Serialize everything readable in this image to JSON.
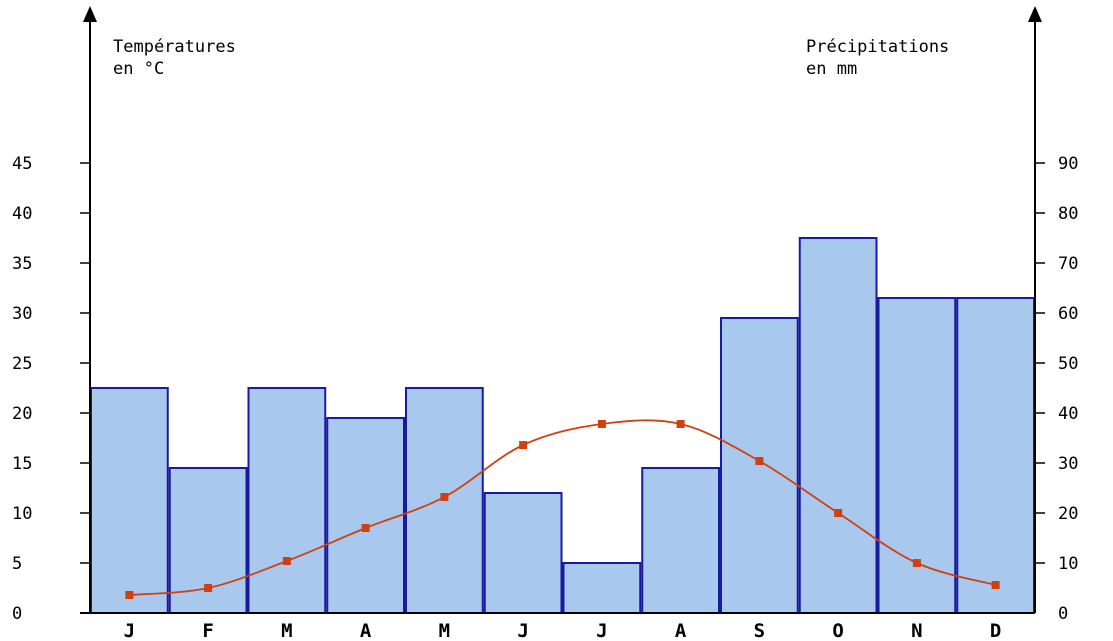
{
  "chart_data": {
    "type": "bar",
    "categories": [
      "J",
      "F",
      "M",
      "A",
      "M",
      "J",
      "J",
      "A",
      "S",
      "O",
      "N",
      "D"
    ],
    "series": [
      {
        "type": "bar",
        "axis": "right",
        "values": [
          45,
          29,
          45,
          39,
          45,
          24,
          10,
          29,
          59,
          75,
          63,
          63
        ],
        "color": "#a8c8ee",
        "stroke": "#1a1aa0"
      },
      {
        "type": "line",
        "axis": "left",
        "values": [
          1.8,
          2.5,
          5.2,
          8.5,
          11.6,
          16.8,
          18.9,
          18.9,
          15.2,
          10.0,
          5.0,
          2.8
        ],
        "color": "#d04010"
      }
    ],
    "left_axis": {
      "title_line1": "Températures",
      "title_line2": "en °C",
      "ylim": [
        0,
        45
      ],
      "ticks": [
        "0",
        "5",
        "10",
        "15",
        "20",
        "25",
        "30",
        "35",
        "40",
        "45"
      ],
      "tick_values": [
        0,
        5,
        10,
        15,
        20,
        25,
        30,
        35,
        40,
        45
      ]
    },
    "right_axis": {
      "title_line1": "Précipitations",
      "title_line2": "en mm",
      "ylim": [
        0,
        90
      ],
      "ticks": [
        "0",
        "10",
        "20",
        "30",
        "40",
        "50",
        "60",
        "70",
        "80",
        "90"
      ],
      "tick_values": [
        0,
        10,
        20,
        30,
        40,
        50,
        60,
        70,
        80,
        90
      ]
    },
    "grid": false,
    "legend": "none"
  }
}
